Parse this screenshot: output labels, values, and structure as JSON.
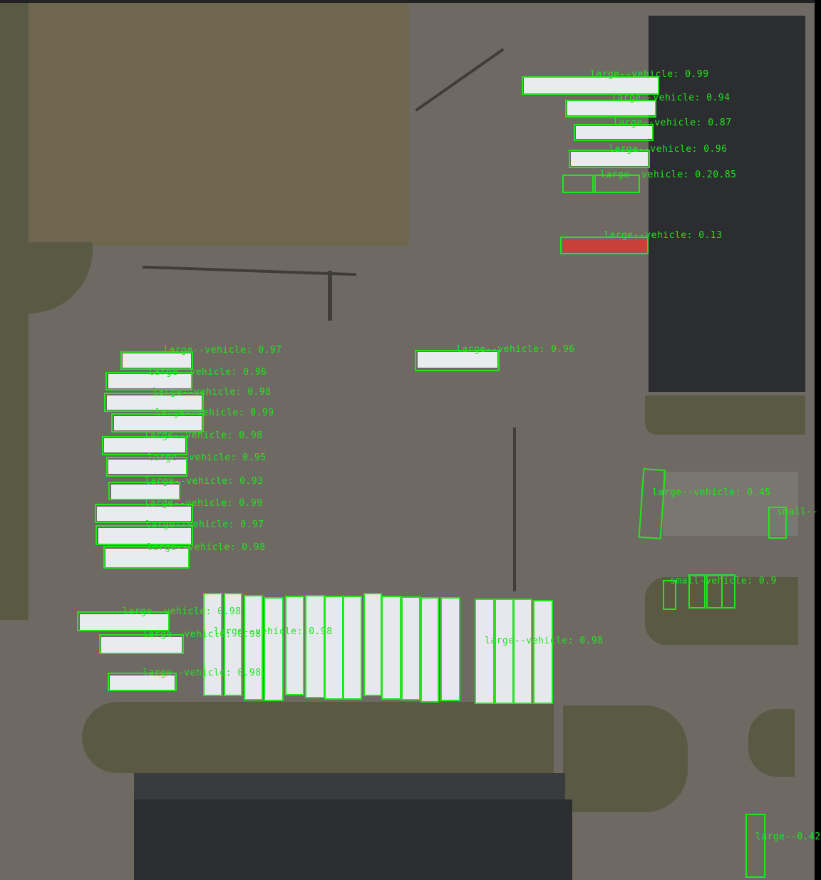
{
  "palette": {
    "box": "#22e51e",
    "asphalt": "#6e6a63",
    "field": "#6f6650",
    "roof": "#2c2d31"
  },
  "detections": [
    {
      "label": "large--vehicle: 0.99",
      "type": "large-vehicle"
    },
    {
      "label": "large--vehicle: 0.94",
      "type": "large-vehicle"
    },
    {
      "label": "large--vehicle: 0.87",
      "type": "large-vehicle"
    },
    {
      "label": "large--vehicle: 0.96",
      "type": "large-vehicle"
    },
    {
      "label": "large--vehicle: 0.20.85",
      "type": "large-vehicle"
    },
    {
      "label": "large--vehicle: 0.13",
      "type": "large-vehicle"
    },
    {
      "label": "large--vehicle: 0.97",
      "type": "large-vehicle"
    },
    {
      "label": "large--vehicle: 0.96",
      "type": "large-vehicle"
    },
    {
      "label": "large--vehicle: 0.98",
      "type": "large-vehicle"
    },
    {
      "label": "large--vehicle: 0.99",
      "type": "large-vehicle"
    },
    {
      "label": "large--vehicle: 0.98",
      "type": "large-vehicle"
    },
    {
      "label": "large--vehicle: 0.95",
      "type": "large-vehicle"
    },
    {
      "label": "large--vehicle: 0.93",
      "type": "large-vehicle"
    },
    {
      "label": "large--vehicle: 0.99",
      "type": "large-vehicle"
    },
    {
      "label": "large--vehicle: 0.97",
      "type": "large-vehicle"
    },
    {
      "label": "large--vehicle: 0.98",
      "type": "large-vehicle"
    },
    {
      "label": "large--vehicle: 0.96",
      "type": "large-vehicle"
    },
    {
      "label": "large--vehicle: 0.98",
      "type": "large-vehicle"
    },
    {
      "label": "large--vehicle: 0.98",
      "type": "large-vehicle"
    },
    {
      "label": "large--vehicle: 0.98",
      "type": "large-vehicle"
    },
    {
      "label": "large--vehicle: 0.45",
      "type": "large-vehicle"
    },
    {
      "label": "small--",
      "type": "small-vehicle"
    },
    {
      "label": "small-vehicle: 0.9",
      "type": "small-vehicle"
    },
    {
      "label": "large--vehicle: 0.98",
      "type": "large-vehicle"
    },
    {
      "label": "large--vehicle: 0.98",
      "type": "large-vehicle"
    },
    {
      "label": "large--0.42",
      "type": "large-vehicle"
    }
  ]
}
